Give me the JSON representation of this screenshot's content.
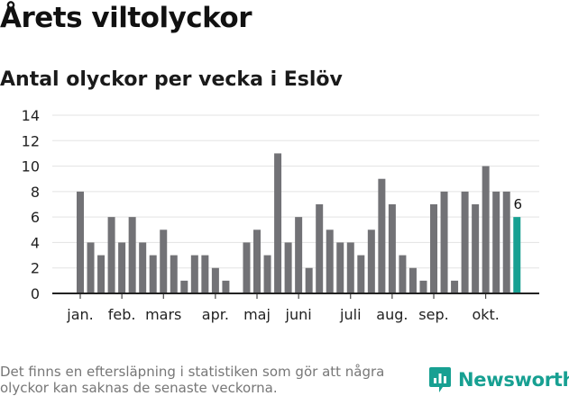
{
  "title": "Årets viltolyckor",
  "subtitle": "Antal olyckor per vecka i Eslöv",
  "note": "Det finns en eftersläpning i statistiken som gör att några olyckor kan saknas de senaste veckorna.",
  "brand": {
    "name": "Newsworthy",
    "color": "#17a092",
    "icon": "bar-chart-bubble-icon"
  },
  "chart_data": {
    "type": "bar",
    "title": "Årets viltolyckor",
    "subtitle": "Antal olyckor per vecka i Eslöv",
    "xlabel": "",
    "ylabel": "",
    "ylim": [
      0,
      14
    ],
    "yticks": [
      0,
      2,
      4,
      6,
      8,
      10,
      12,
      14
    ],
    "grid": true,
    "legend": "none",
    "weeks": [
      1,
      2,
      3,
      4,
      5,
      6,
      7,
      8,
      9,
      10,
      11,
      12,
      13,
      14,
      15,
      16,
      17,
      18,
      19,
      20,
      21,
      22,
      23,
      24,
      25,
      26,
      27,
      28,
      29,
      30,
      31,
      32,
      33,
      34,
      35,
      36,
      37,
      38,
      39,
      40,
      41,
      42,
      43
    ],
    "values": [
      8,
      4,
      3,
      6,
      4,
      6,
      4,
      3,
      5,
      3,
      1,
      3,
      3,
      2,
      1,
      null,
      4,
      5,
      3,
      11,
      4,
      6,
      2,
      7,
      5,
      4,
      4,
      3,
      5,
      9,
      7,
      3,
      2,
      1,
      7,
      8,
      1,
      8,
      7,
      10,
      8,
      8,
      6
    ],
    "month_labels": [
      {
        "label": "jan.",
        "week": 1
      },
      {
        "label": "feb.",
        "week": 5
      },
      {
        "label": "mars",
        "week": 9
      },
      {
        "label": "apr.",
        "week": 14
      },
      {
        "label": "maj",
        "week": 18
      },
      {
        "label": "juni",
        "week": 22
      },
      {
        "label": "juli",
        "week": 27
      },
      {
        "label": "aug.",
        "week": 31
      },
      {
        "label": "sep.",
        "week": 35
      },
      {
        "label": "okt.",
        "week": 40
      }
    ],
    "highlight": {
      "week": 43,
      "value": 6,
      "label": "6"
    },
    "colors": {
      "bar": "#727276",
      "highlight": "#17a092",
      "grid": "#e3e3e3",
      "axis": "#222222"
    }
  }
}
